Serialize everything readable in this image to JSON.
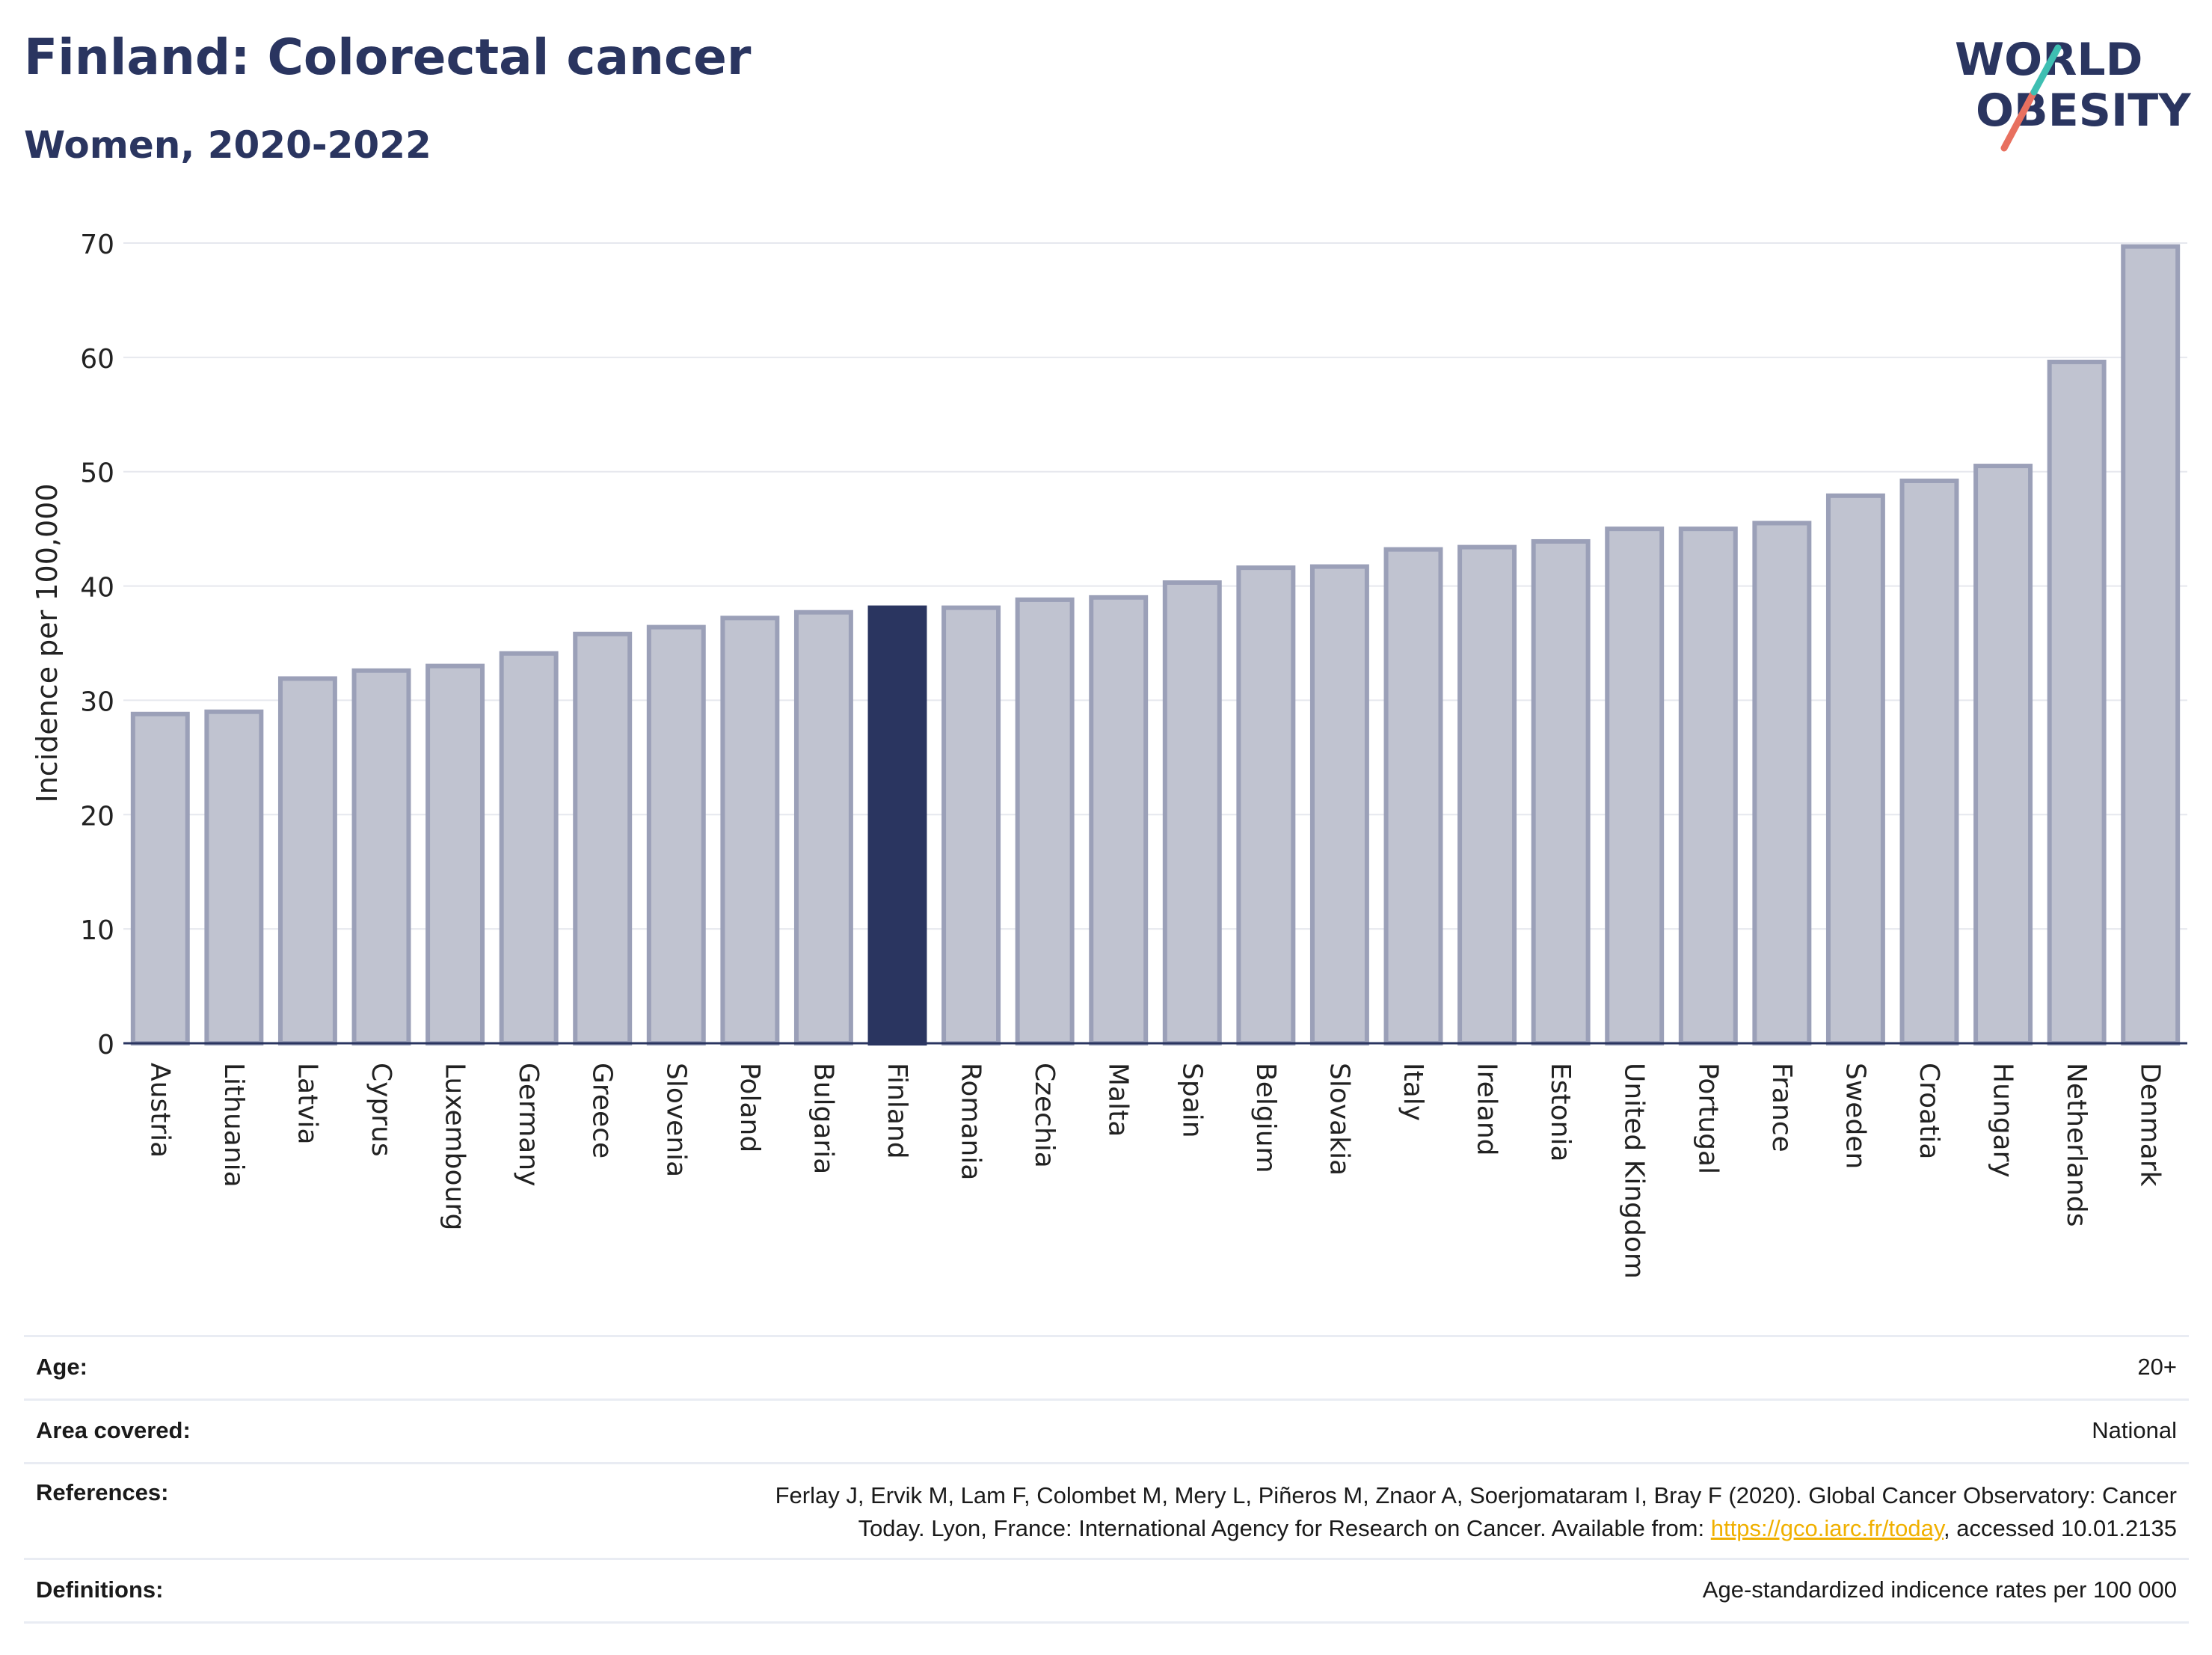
{
  "header": {
    "title": "Finland: Colorectal cancer",
    "subtitle": "Women, 2020-2022"
  },
  "logo": {
    "line1": "WORLD",
    "line2": "OBESITY"
  },
  "colors": {
    "highlight": "#2a3560",
    "bar_fill": "#c0c3d0",
    "bar_stroke": "#9ba0b8",
    "grid": "#e6e8ee"
  },
  "chart_data": {
    "type": "bar",
    "ylabel": "Incidence per 100,000",
    "ylim": [
      0,
      70
    ],
    "yticks": [
      0,
      10,
      20,
      30,
      40,
      50,
      60,
      70
    ],
    "highlight": "Finland",
    "categories": [
      "Austria",
      "Lithuania",
      "Latvia",
      "Cyprus",
      "Luxembourg",
      "Germany",
      "Greece",
      "Slovenia",
      "Poland",
      "Bulgaria",
      "Finland",
      "Romania",
      "Czechia",
      "Malta",
      "Spain",
      "Belgium",
      "Slovakia",
      "Italy",
      "Ireland",
      "Estonia",
      "United Kingdom",
      "Portugal",
      "France",
      "Sweden",
      "Croatia",
      "Hungary",
      "Netherlands",
      "Denmark"
    ],
    "values": [
      28.8,
      29.0,
      31.9,
      32.6,
      33.0,
      34.1,
      35.8,
      36.4,
      37.2,
      37.7,
      38.1,
      38.1,
      38.8,
      39.0,
      40.3,
      41.6,
      41.7,
      43.2,
      43.4,
      43.9,
      45.0,
      45.0,
      45.5,
      47.9,
      49.2,
      50.5,
      59.6,
      69.7
    ]
  },
  "meta": {
    "age_label": "Age:",
    "age_value": "20+",
    "area_label": "Area covered:",
    "area_value": "National",
    "references_label": "References:",
    "references_line1": "Ferlay J, Ervik M, Lam F, Colombet M, Mery L, Piñeros M, Znaor A, Soerjomataram I, Bray F (2020). Global Cancer Observatory: Cancer",
    "references_line2_pre": "Today. Lyon, France: International Agency for Research on Cancer. Available from: ",
    "references_link": "https://gco.iarc.fr/today",
    "references_line2_post": ", accessed 10.01.2135",
    "definitions_label": "Definitions:",
    "definitions_value": "Age-standardized indicence rates per 100 000"
  }
}
